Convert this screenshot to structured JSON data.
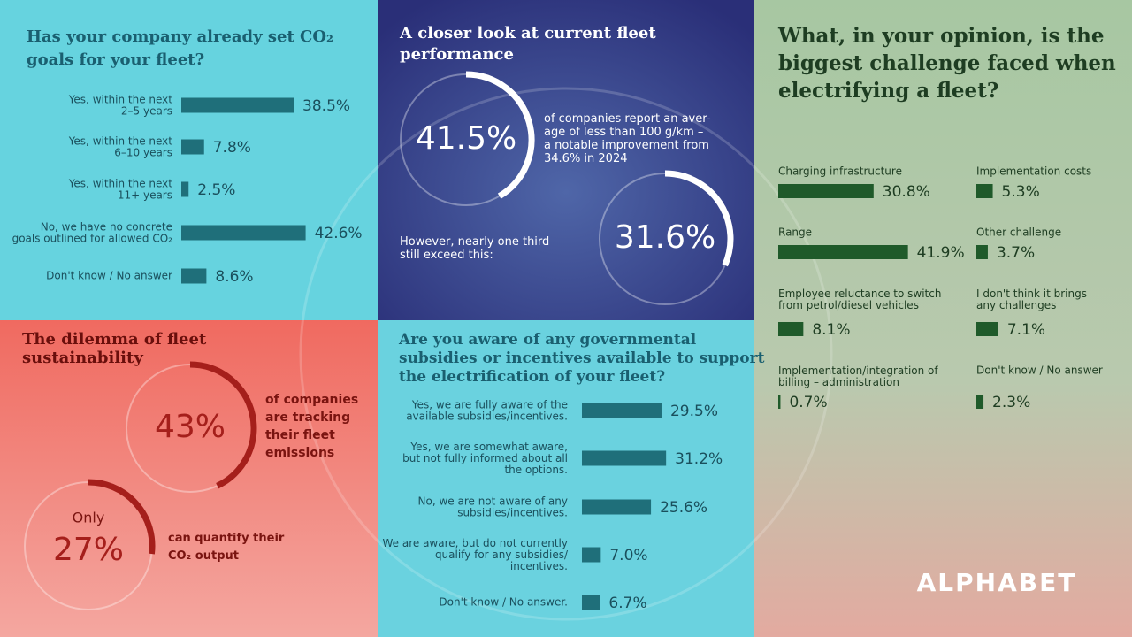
{
  "chart_data": [
    {
      "type": "bar",
      "title": "Has your company already set CO₂\ngoals for your fleet?",
      "categories": [
        "Yes, within the next\n2–5 years",
        "Yes, within the next\n6–10 years",
        "Yes, within the next\n11+ years",
        "No, we have no concrete\ngoals outlined for allowed CO₂",
        "Don't know / No answer"
      ],
      "values": [
        38.5,
        7.8,
        2.5,
        42.6,
        8.6
      ],
      "value_labels": [
        "38.5%",
        "7.8%",
        "2.5%",
        "42.6%",
        "8.6%"
      ],
      "color": "#1f6f7a"
    },
    {
      "type": "gauge",
      "title": "A closer look at current fleet\nperformance",
      "items": [
        {
          "value": 41.5,
          "value_label": "41.5%",
          "caption": "of companies report an aver-\nage of less than 100 g/km –\na notable improvement from\n34.6% in 2024"
        },
        {
          "value": 31.6,
          "value_label": "31.6%",
          "caption": "However, nearly one third\nstill exceed this:"
        }
      ],
      "color": "#ffffff"
    },
    {
      "type": "gauge",
      "title": "The dilemma of fleet\nsustainability",
      "items": [
        {
          "value": 43,
          "value_label": "43%",
          "caption": "of companies\nare tracking\ntheir fleet\nemissions"
        },
        {
          "value": 27,
          "value_label": "27%",
          "note": "Only",
          "caption": "can quantify their\nCO₂ output"
        }
      ],
      "color": "#a51f1b"
    },
    {
      "type": "bar",
      "title": "Are you aware of any governmental\nsubsidies or incentives available to support\nthe electrification of your fleet?",
      "categories": [
        "Yes, we are fully aware of the\navailable subsidies/incentives.",
        "Yes, we are somewhat aware,\nbut not fully informed about all\nthe options.",
        "No, we are not aware of any\nsubsidies/incentives.",
        "We are aware, but do not currently\nqualify for any subsidies/\nincentives.",
        "Don't know / No answer."
      ],
      "values": [
        29.5,
        31.2,
        25.6,
        7.0,
        6.7
      ],
      "value_labels": [
        "29.5%",
        "31.2%",
        "25.6%",
        "7.0%",
        "6.7%"
      ],
      "color": "#1f6f7a"
    },
    {
      "type": "bar",
      "title": "What, in your opinion, is the\nbiggest challenge faced when\nelectrifying a fleet?",
      "categories": [
        "Charging infrastructure",
        "Implementation costs",
        "Range",
        "Other challenge",
        "Employee reluctance to switch\nfrom petrol/diesel vehicles",
        "I don't think it brings\nany challenges",
        "Implementation/integration of\nbilling – administration",
        "Don't know / No answer"
      ],
      "values": [
        30.8,
        5.3,
        41.9,
        3.7,
        8.1,
        7.1,
        0.7,
        2.3
      ],
      "value_labels": [
        "30.8%",
        "5.3%",
        "41.9%",
        "3.7%",
        "8.1%",
        "7.1%",
        "0.7%",
        "2.3%"
      ],
      "color": "#1f5a2a"
    }
  ],
  "logo": "ALPHABET"
}
